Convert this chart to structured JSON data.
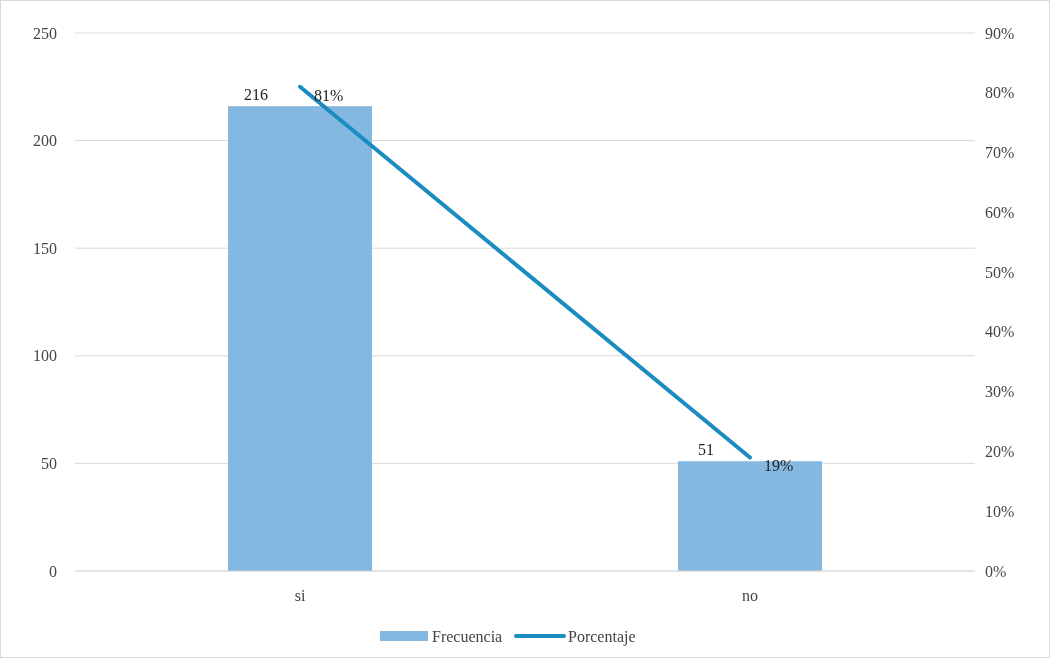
{
  "chart_data": {
    "type": "bar",
    "categories": [
      "si",
      "no"
    ],
    "series": [
      {
        "name": "Frecuencia",
        "color": "#85b8e0",
        "values": [
          216,
          51
        ],
        "value_labels": [
          "216",
          "51"
        ]
      },
      {
        "name": "Porcentaje",
        "type": "line",
        "axis": "y2",
        "color": "#1a8cc0",
        "values": [
          81,
          19
        ],
        "value_labels": [
          "81%",
          "19%"
        ]
      }
    ],
    "ylim": [
      0,
      250
    ],
    "yticks": [
      0,
      50,
      100,
      150,
      200,
      250
    ],
    "y2lim": [
      0,
      90
    ],
    "y2ticks": [
      {
        "value": 0,
        "label": "0%"
      },
      {
        "value": 10,
        "label": "10%"
      },
      {
        "value": 20,
        "label": "20%"
      },
      {
        "value": 30,
        "label": "30%"
      },
      {
        "value": 40,
        "label": "40%"
      },
      {
        "value": 50,
        "label": "50%"
      },
      {
        "value": 60,
        "label": "60%"
      },
      {
        "value": 70,
        "label": "70%"
      },
      {
        "value": 80,
        "label": "80%"
      },
      {
        "value": 90,
        "label": "90%"
      }
    ],
    "grid": "y",
    "legend": "bottom",
    "marker": "none",
    "line_style": "solid"
  }
}
